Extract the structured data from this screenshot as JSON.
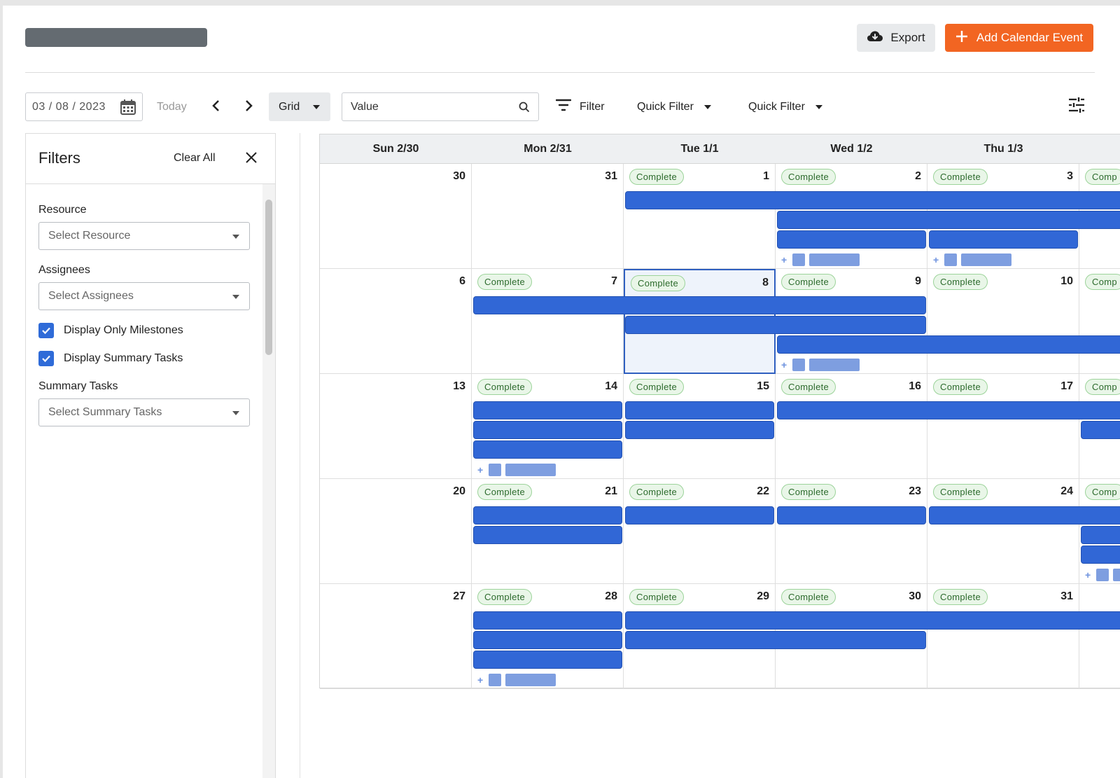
{
  "header": {
    "export_label": "Export",
    "add_event_label": "Add Calendar Event",
    "accent": "#f26522"
  },
  "toolbar": {
    "date_value": "03 / 08 / 2023",
    "today_label": "Today",
    "view_select": "Grid",
    "search_value": "Value",
    "filter_label": "Filter",
    "quick_filter_1": "Quick Filter",
    "quick_filter_2": "Quick Filter"
  },
  "filters": {
    "title": "Filters",
    "clear_all": "Clear All",
    "resource_label": "Resource",
    "resource_placeholder": "Select Resource",
    "assignees_label": "Assignees",
    "assignees_placeholder": "Select Assignees",
    "milestones_label": "Display Only Milestones",
    "milestones_checked": true,
    "summary_toggle_label": "Display Summary Tasks",
    "summary_toggle_checked": true,
    "summary_tasks_label": "Summary Tasks",
    "summary_tasks_placeholder": "Select Summary Tasks"
  },
  "calendar": {
    "day_names": [
      "Sun 2/30",
      "Mon 2/31",
      "Tue 1/1",
      "Wed 1/2",
      "Thu 1/3"
    ],
    "status_label": "Complete",
    "event_color": "#3167d6",
    "selected_day": "8",
    "weeks": [
      [
        "30",
        "31",
        "1",
        "2",
        "3",
        ""
      ],
      [
        "6",
        "7",
        "8",
        "9",
        "10",
        ""
      ],
      [
        "13",
        "14",
        "15",
        "16",
        "17",
        ""
      ],
      [
        "20",
        "21",
        "22",
        "23",
        "24",
        ""
      ],
      [
        "27",
        "28",
        "29",
        "30",
        "31",
        ""
      ]
    ],
    "badge_truncated": "Comp"
  }
}
